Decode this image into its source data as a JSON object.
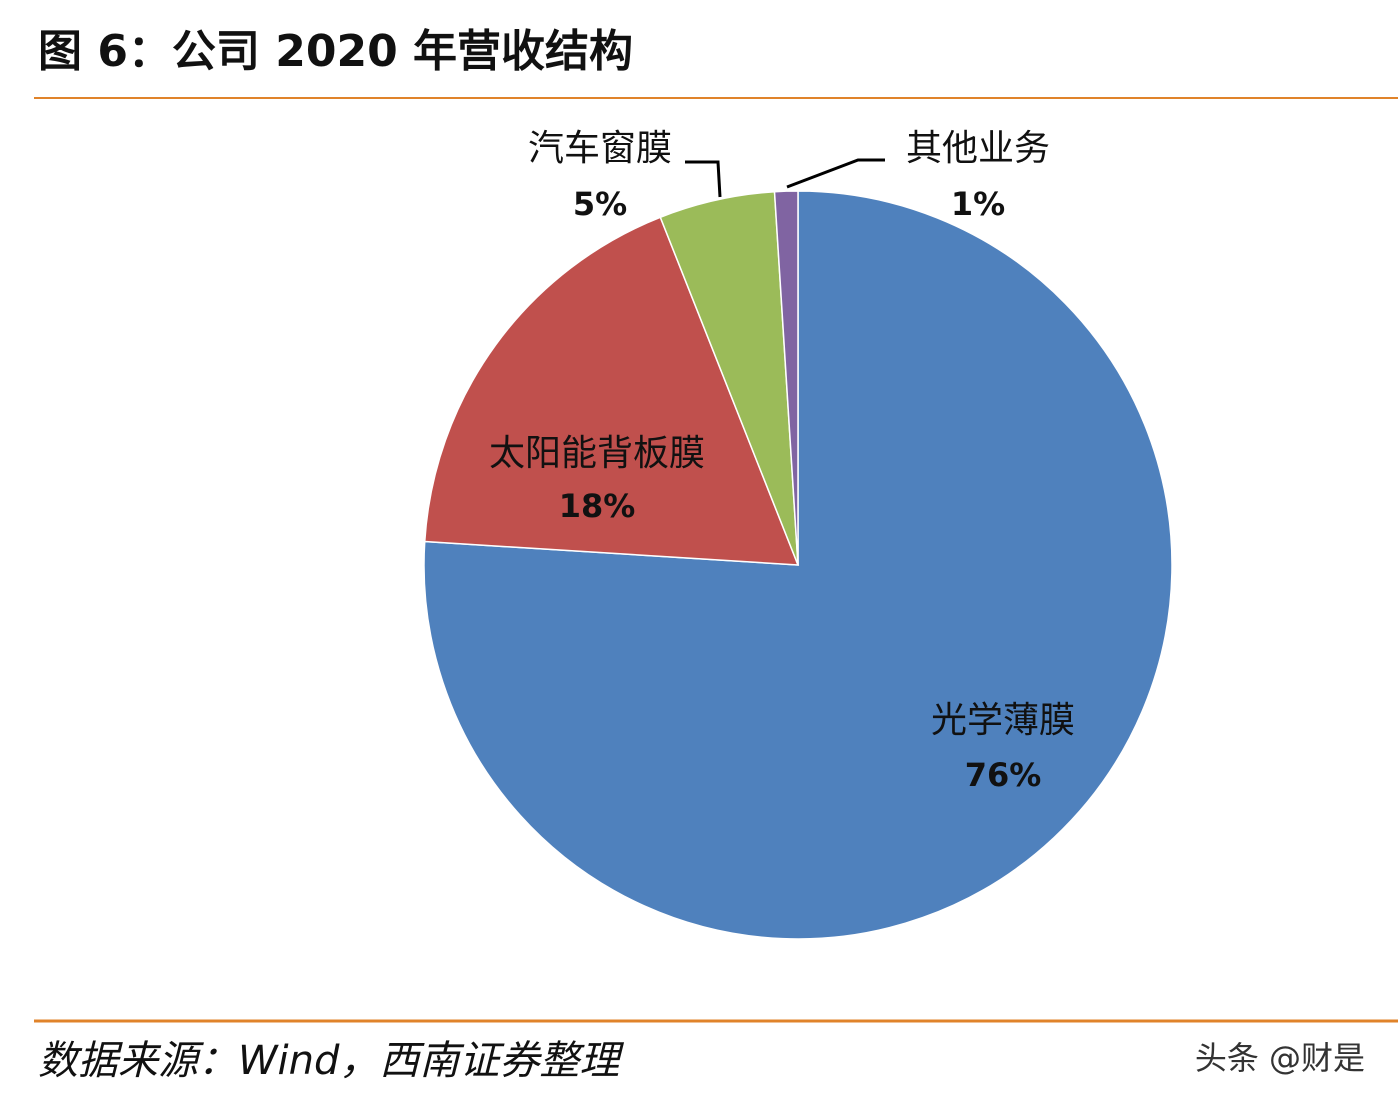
{
  "title": "图 6：公司 2020 年营收结构",
  "chart_data": {
    "type": "pie",
    "categories": [
      "光学薄膜",
      "太阳能背板膜",
      "汽车窗膜",
      "其他业务"
    ],
    "values": [
      76,
      18,
      5,
      1
    ],
    "value_labels": [
      "76%",
      "18%",
      "5%",
      "1%"
    ],
    "colors": [
      "#4f81bd",
      "#c0504d",
      "#9bbb59",
      "#8064a2"
    ]
  },
  "source": "数据来源：Wind，西南证券整理",
  "watermark": "头条 @财是"
}
